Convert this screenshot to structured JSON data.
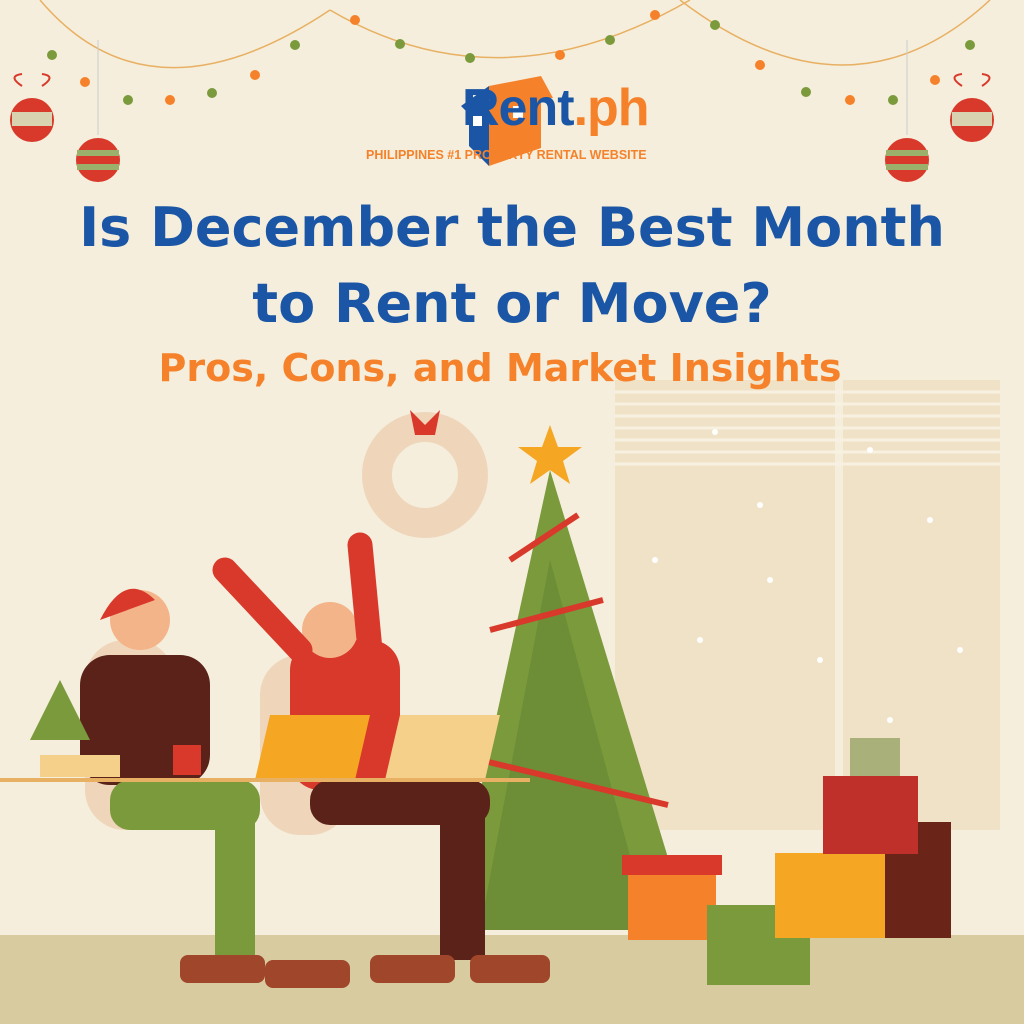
{
  "logo": {
    "name_part1": "Rent",
    "name_part2": ".ph",
    "tagline": "PHILIPPINES #1  PROPERTY RENTAL WEBSITE"
  },
  "headline": {
    "line1": "Is December the Best Month",
    "line2": "to Rent or Move?"
  },
  "subheadline": "Pros, Cons, and Market Insights",
  "colors": {
    "background": "#f5eedc",
    "brand_blue": "#1a56a5",
    "brand_orange": "#f5822a",
    "tree_green": "#7a9a3c",
    "accent_red": "#d8392b"
  }
}
